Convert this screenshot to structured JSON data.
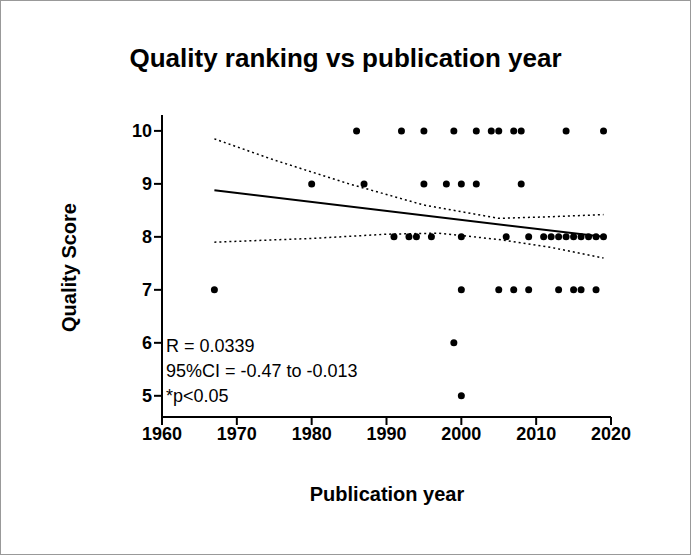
{
  "chart_data": {
    "type": "scatter",
    "title": "Quality ranking vs publication year",
    "x_label": "Publication year",
    "y_label": "Quality Score",
    "xlim": [
      1960,
      2020
    ],
    "xticks": [
      1960,
      1970,
      1980,
      1990,
      2000,
      2010,
      2020
    ],
    "ylim": [
      4.6,
      10.3
    ],
    "yticks": [
      5,
      6,
      7,
      8,
      9,
      10
    ],
    "grid": false,
    "annotations": [
      "R = 0.0339",
      "95%CI = -0.47 to -0.013",
      "*p<0.05"
    ],
    "series": [
      {
        "type": "scatter",
        "color": "#000000",
        "marker": "circle",
        "x": [
          1986,
          1992,
          1995,
          1999,
          2002,
          2004,
          2005,
          2007,
          2008,
          2014,
          2019,
          1980,
          1987,
          1995,
          1998,
          2000,
          2002,
          2008,
          1991,
          1993,
          1994,
          1996,
          2000,
          2006,
          2009,
          2011,
          2012,
          2013,
          2014,
          2015,
          2016,
          2017,
          2018,
          2019,
          1967,
          2000,
          2005,
          2007,
          2009,
          2013,
          2015,
          2016,
          2018,
          1999,
          2000
        ],
        "values": [
          10,
          10,
          10,
          10,
          10,
          10,
          10,
          10,
          10,
          10,
          10,
          9,
          9,
          9,
          9,
          9,
          9,
          9,
          8,
          8,
          8,
          8,
          8,
          8,
          8,
          8,
          8,
          8,
          8,
          8,
          8,
          8,
          8,
          8,
          7,
          7,
          7,
          7,
          7,
          7,
          7,
          7,
          7,
          6,
          5
        ]
      },
      {
        "type": "line",
        "color": "#000000",
        "line_style": "solid",
        "x": [
          1967,
          2019
        ],
        "values": [
          8.88,
          8.0
        ]
      },
      {
        "type": "line",
        "color": "#000000",
        "line_style": "dotted",
        "x": [
          1967,
          1975,
          1985,
          1995,
          2005,
          2012,
          2019
        ],
        "values": [
          9.85,
          9.45,
          9.0,
          8.6,
          8.35,
          8.38,
          8.42
        ]
      },
      {
        "type": "line",
        "color": "#000000",
        "line_style": "dotted",
        "x": [
          1967,
          1980,
          1990,
          1997,
          2005,
          2012,
          2019
        ],
        "values": [
          7.9,
          7.97,
          8.05,
          8.07,
          7.95,
          7.8,
          7.6
        ]
      }
    ]
  }
}
